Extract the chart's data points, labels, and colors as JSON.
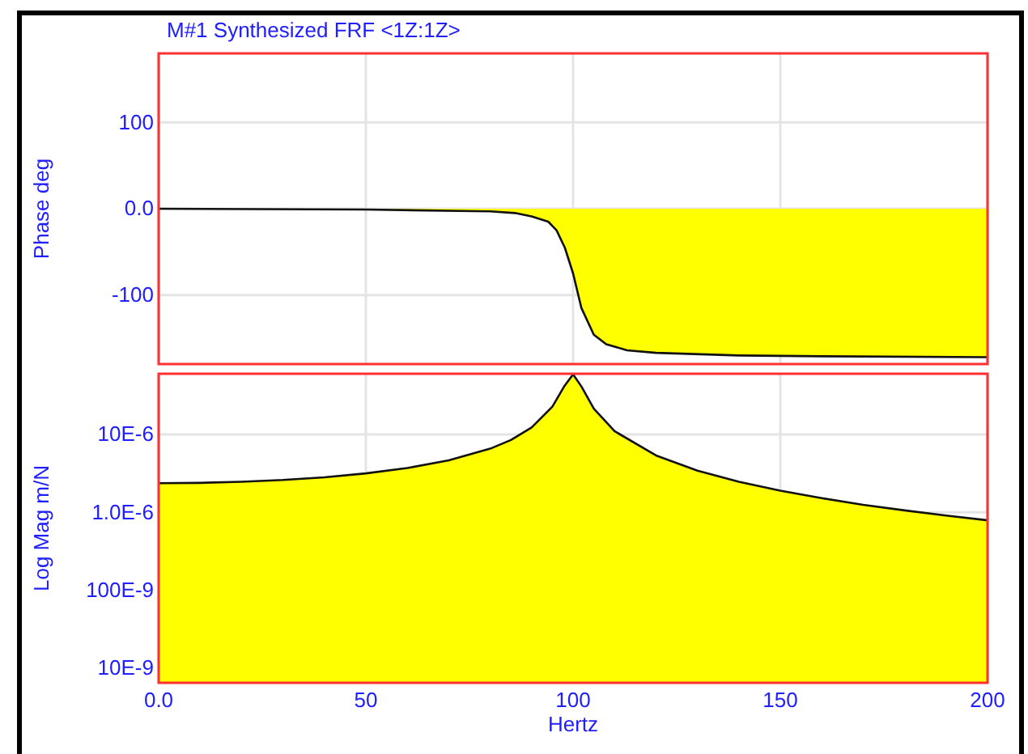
{
  "chart_data": [
    {
      "type": "area",
      "title": "M#1 Synthesized FRF  <1Z:1Z>",
      "ylabel": "Phase  deg",
      "x": [
        0,
        50,
        80,
        86,
        90,
        94,
        96,
        98,
        100,
        102,
        105,
        108,
        113,
        120,
        140,
        160,
        200
      ],
      "series": [
        {
          "color": "#ffff00",
          "values": [
            0,
            -1,
            -3,
            -5,
            -9,
            -15,
            -25,
            -45,
            -75,
            -115,
            -146,
            -157,
            -164,
            -167,
            -170,
            -171,
            -172
          ]
        }
      ],
      "xlim": [
        0,
        200
      ],
      "xticks": [
        0,
        50,
        100,
        150,
        200
      ],
      "ylim": [
        -180,
        180
      ],
      "yticks": [
        {
          "value": -100,
          "label": "-100"
        },
        {
          "value": 0,
          "label": "0.0"
        },
        {
          "value": 100,
          "label": "100"
        }
      ],
      "grid": true,
      "tick_labels": "y"
    },
    {
      "type": "area",
      "xlabel": "Hertz",
      "ylabel": "Log Mag  m/N",
      "log": true,
      "x": [
        0,
        10,
        20,
        30,
        40,
        50,
        60,
        70,
        80,
        85,
        90,
        95,
        98,
        100,
        102,
        105,
        110,
        120,
        130,
        140,
        150,
        160,
        170,
        180,
        190,
        200
      ],
      "series": [
        {
          "color": "#ffff00",
          "values": [
            2.37e-06,
            2.39e-06,
            2.47e-06,
            2.6e-06,
            2.82e-06,
            3.16e-06,
            3.7e-06,
            4.65e-06,
            6.56e-06,
            8.47e-06,
            1.23e-05,
            2.27e-05,
            4.25e-05,
            5.9e-05,
            4.13e-05,
            2.14e-05,
            1.1e-05,
            5.37e-06,
            3.43e-06,
            2.47e-06,
            1.9e-06,
            1.52e-06,
            1.25e-06,
            1.06e-06,
            9.1e-07,
            7.9e-07
          ]
        }
      ],
      "xlim": [
        0,
        200
      ],
      "xticks": [
        {
          "value": 0,
          "label": "0.0"
        },
        50,
        100,
        150,
        200
      ],
      "ylim": [
        6.5e-09,
        6e-05
      ],
      "yticks": [
        {
          "value": 1e-08,
          "label": "10E-9"
        },
        {
          "value": 1e-07,
          "label": "100E-9"
        },
        {
          "value": 1e-06,
          "label": "1.0E-6"
        },
        {
          "value": 1e-05,
          "label": "10E-6"
        }
      ],
      "grid": true
    }
  ]
}
